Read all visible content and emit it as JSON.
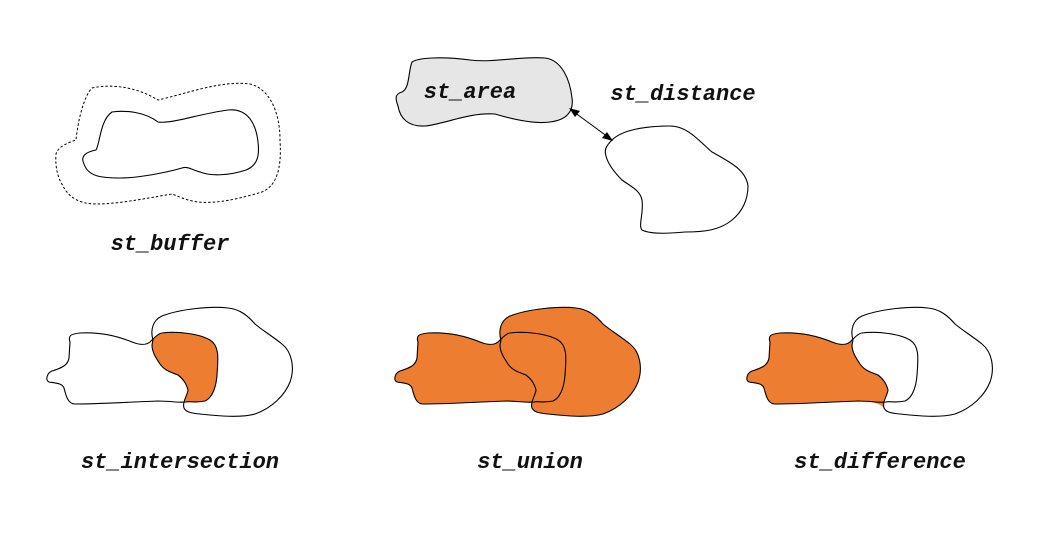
{
  "labels": {
    "buffer": "st_buffer",
    "area": "st_area",
    "distance": "st_distance",
    "intersection": "st_intersection",
    "union": "st_union",
    "difference": "st_difference"
  },
  "colors": {
    "highlight": "#ed7d31",
    "area_fill": "#e6e6e6",
    "stroke": "#000000"
  }
}
